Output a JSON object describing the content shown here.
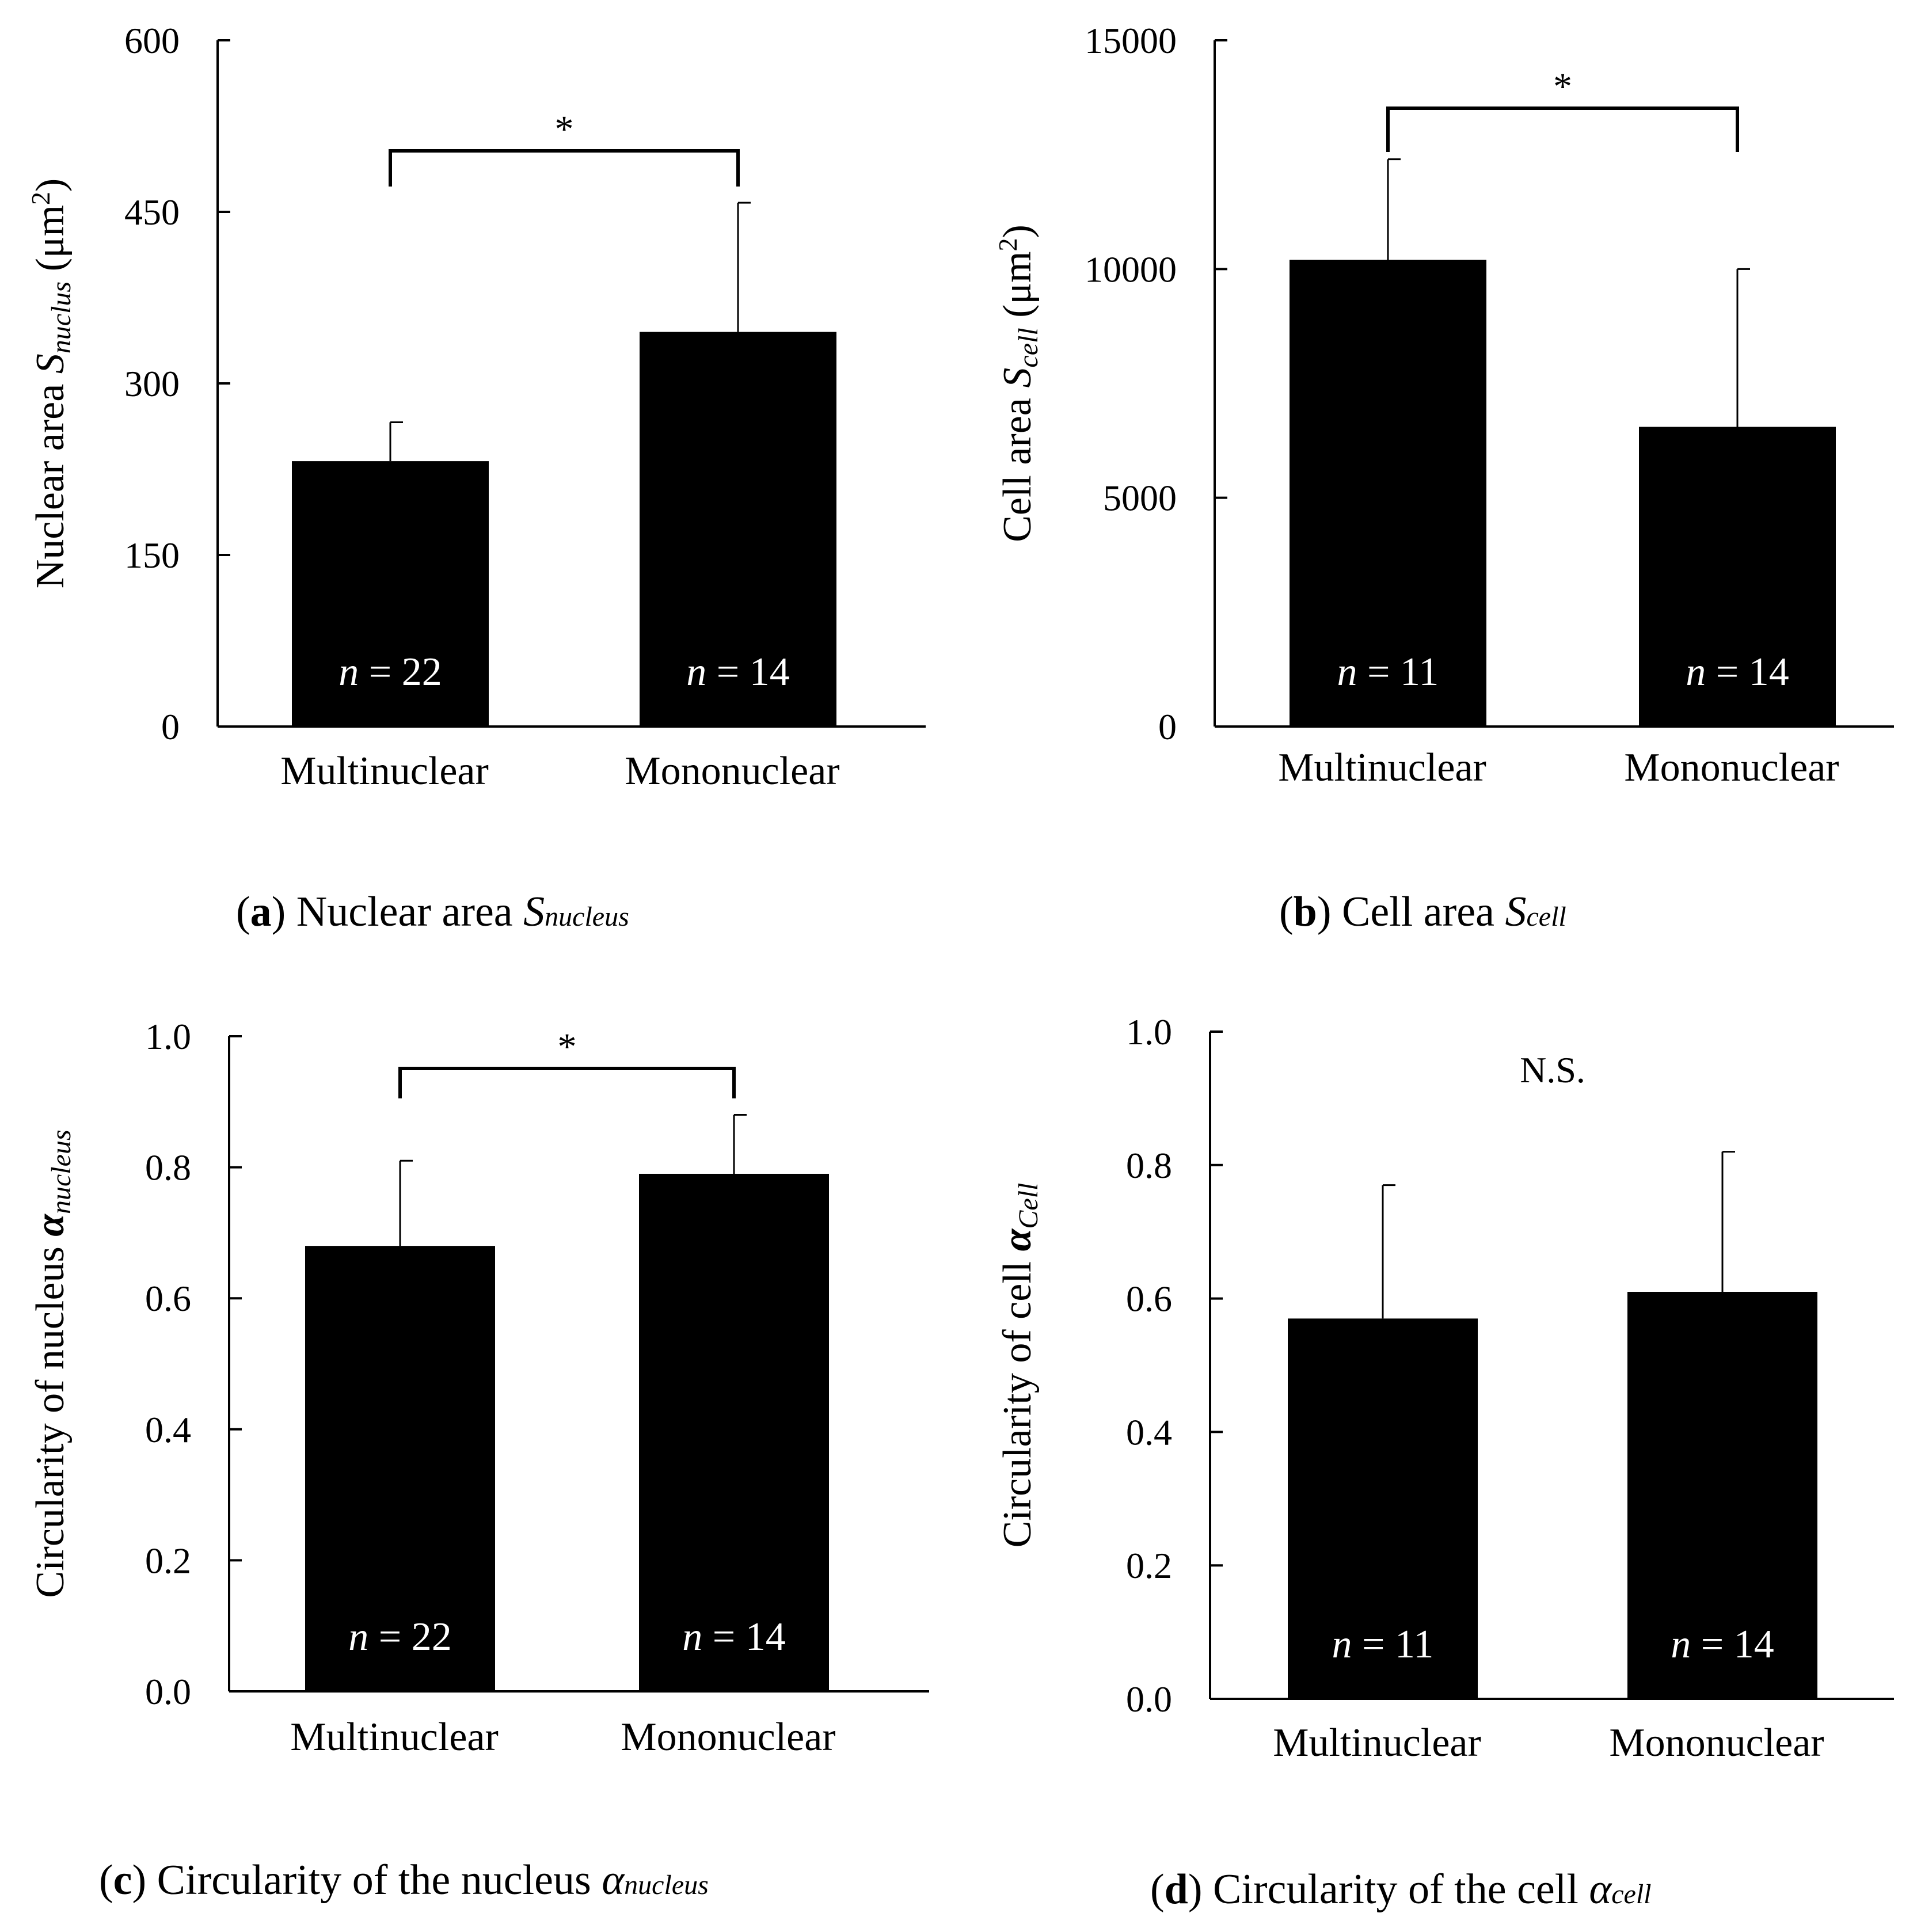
{
  "chart_data": [
    {
      "id": "a",
      "type": "bar",
      "caption_letter": "a",
      "caption_text": "Nuclear area",
      "caption_symbol": "S",
      "caption_sub": "nucleus",
      "ylabel": "Nuclear area",
      "ylabel_symbol": "S",
      "ylabel_sub": "nuclus",
      "ylabel_unit": "(μm",
      "ylabel_unit_sup": "2",
      "ylabel_unit_close": ")",
      "ylim": [
        0,
        600
      ],
      "yticks": [
        "0",
        "150",
        "300",
        "450",
        "600"
      ],
      "categories": [
        "Multinuclear",
        "Mononuclear"
      ],
      "values": [
        232,
        345
      ],
      "errors": [
        34,
        113
      ],
      "n_prefix": "n",
      "n_labels": [
        "= 22",
        "= 14"
      ],
      "significance": "*"
    },
    {
      "id": "b",
      "type": "bar",
      "caption_letter": "b",
      "caption_text": "Cell area",
      "caption_symbol": "S",
      "caption_sub": "cell",
      "ylabel": "Cell area",
      "ylabel_symbol": "S",
      "ylabel_sub": "cell",
      "ylabel_unit": "(μm",
      "ylabel_unit_sup": "2",
      "ylabel_unit_close": ")",
      "ylim": [
        0,
        15000
      ],
      "yticks": [
        "0",
        "5000",
        "10000",
        "15000"
      ],
      "categories": [
        "Multinuclear",
        "Mononuclear"
      ],
      "values": [
        10200,
        6550
      ],
      "errors": [
        2200,
        3450
      ],
      "n_prefix": "n",
      "n_labels": [
        "= 11",
        "= 14"
      ],
      "significance": "*"
    },
    {
      "id": "c",
      "type": "bar",
      "caption_letter": "c",
      "caption_text": "Circularity of the nucleus",
      "caption_symbol": "α",
      "caption_sub": "nucleus",
      "ylabel": "Circularity of nucleus",
      "ylabel_symbol": "α",
      "ylabel_sub": "nucleus",
      "ylabel_unit": "",
      "ylabel_unit_sup": "",
      "ylabel_unit_close": "",
      "ylim": [
        0,
        1.0
      ],
      "yticks": [
        "0.0",
        "0.2",
        "0.4",
        "0.6",
        "0.8",
        "1.0"
      ],
      "categories": [
        "Multinuclear",
        "Mononuclear"
      ],
      "values": [
        0.68,
        0.79
      ],
      "errors": [
        0.13,
        0.09
      ],
      "n_prefix": "n",
      "n_labels": [
        "= 22",
        "= 14"
      ],
      "significance": "*"
    },
    {
      "id": "d",
      "type": "bar",
      "caption_letter": "d",
      "caption_text": "Circularity of the cell",
      "caption_symbol": "α",
      "caption_sub": "cell",
      "ylabel": "Circularity of cell",
      "ylabel_symbol": "α",
      "ylabel_sub": "Cell",
      "ylabel_unit": "",
      "ylabel_unit_sup": "",
      "ylabel_unit_close": "",
      "ylim": [
        0,
        1.0
      ],
      "yticks": [
        "0.0",
        "0.2",
        "0.4",
        "0.6",
        "0.8",
        "1.0"
      ],
      "categories": [
        "Multinuclear",
        "Mononuclear"
      ],
      "values": [
        0.57,
        0.61
      ],
      "errors": [
        0.2,
        0.21
      ],
      "n_prefix": "n",
      "n_labels": [
        "= 11",
        "= 14"
      ],
      "significance": "N.S."
    }
  ]
}
